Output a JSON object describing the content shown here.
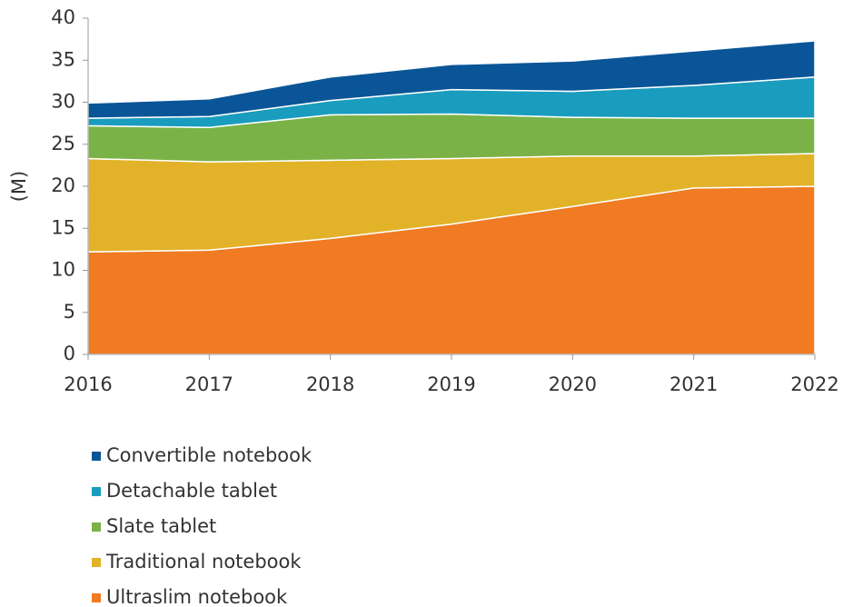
{
  "chart_data": {
    "type": "stacked_area",
    "ylabel": "(M)",
    "x": [
      2016,
      2017,
      2018,
      2019,
      2020,
      2021,
      2022
    ],
    "xlim": [
      2016,
      2022
    ],
    "xticks": [
      2016,
      2017,
      2018,
      2019,
      2020,
      2021,
      2022
    ],
    "ylim": [
      0,
      40
    ],
    "yticks": [
      0,
      5,
      10,
      15,
      20,
      25,
      30,
      35,
      40
    ],
    "series": [
      {
        "name": "Ultraslim notebook",
        "color": "#f07b22",
        "values": [
          12.2,
          12.4,
          13.8,
          15.5,
          17.6,
          19.8,
          20.0
        ]
      },
      {
        "name": "Traditional notebook",
        "color": "#e2b229",
        "values": [
          11.1,
          10.5,
          9.3,
          7.8,
          6.0,
          3.8,
          3.9
        ]
      },
      {
        "name": "Slate tablet",
        "color": "#7bb247",
        "values": [
          3.9,
          4.1,
          5.4,
          5.3,
          4.6,
          4.5,
          4.2
        ]
      },
      {
        "name": "Detachable tablet",
        "color": "#1a9cbe",
        "values": [
          0.9,
          1.3,
          1.7,
          2.9,
          3.1,
          3.9,
          4.9
        ]
      },
      {
        "name": "Convertible notebook",
        "color": "#0a5597",
        "values": [
          1.8,
          2.1,
          2.8,
          3.0,
          3.6,
          4.1,
          4.3
        ]
      }
    ]
  }
}
